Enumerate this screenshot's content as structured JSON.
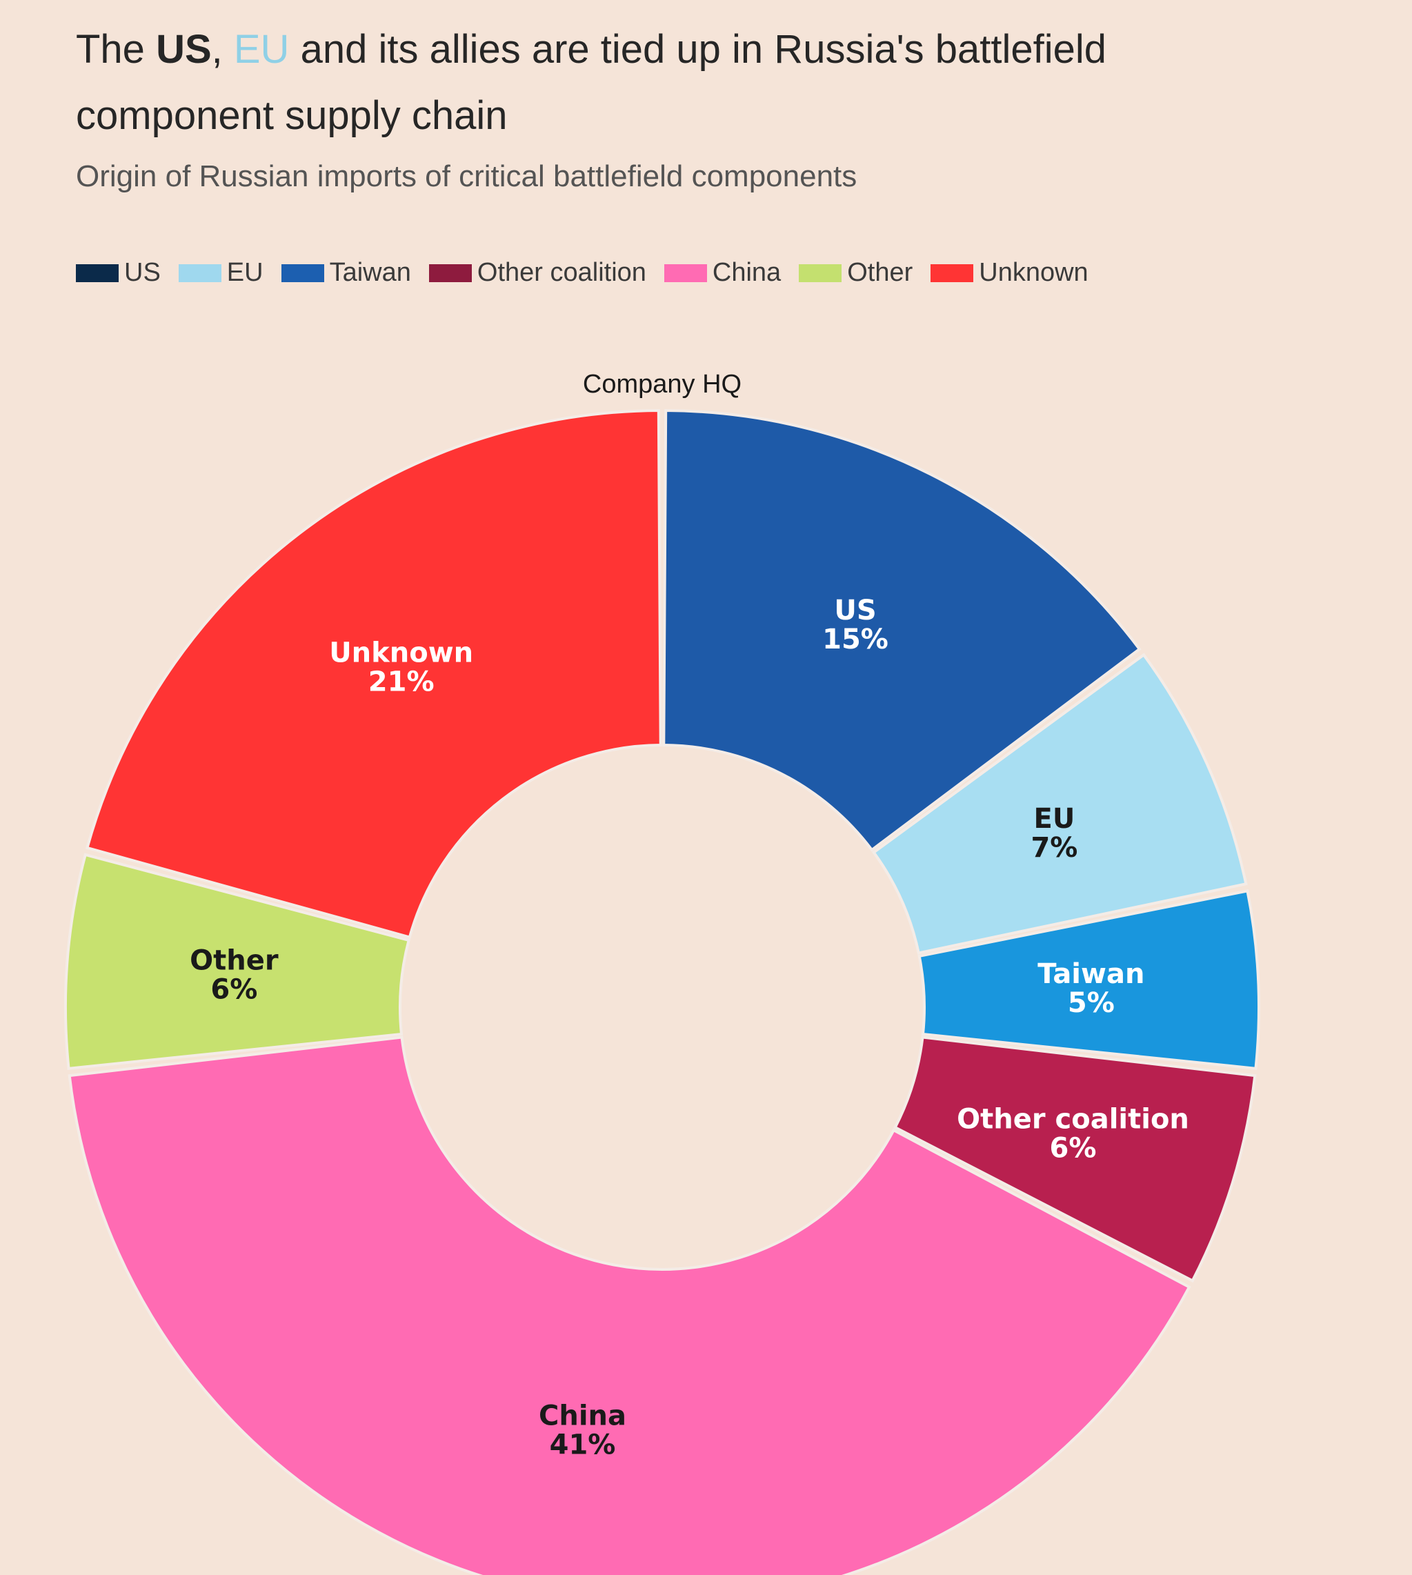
{
  "header": {
    "title_parts": {
      "prefix": "The ",
      "us": "US",
      "comma": ", ",
      "eu": "EU",
      "rest": " and its allies are tied up in Russia's battlefield component supply chain"
    },
    "subtitle": "Origin of Russian imports of critical battlefield components"
  },
  "legend": [
    {
      "label": "US",
      "color": "#0b2a4a"
    },
    {
      "label": "EU",
      "color": "#9fd8ee"
    },
    {
      "label": "Taiwan",
      "color": "#1c5fb0"
    },
    {
      "label": "Other coalition",
      "color": "#8e1b3e"
    },
    {
      "label": "China",
      "color": "#ff6bb3"
    },
    {
      "label": "Other",
      "color": "#c4e06f"
    },
    {
      "label": "Unknown",
      "color": "#ff3434"
    }
  ],
  "chart_data": {
    "type": "pie",
    "title": "The US, EU and its allies are tied up in Russia's battlefield component supply chain",
    "subtitle": "Origin of Russian imports of critical battlefield components",
    "top_label": "Company HQ",
    "donut": true,
    "legend_position": "top",
    "categories": [
      "US",
      "EU",
      "Taiwan",
      "Other coalition",
      "China",
      "Other",
      "Unknown"
    ],
    "values": [
      15,
      7,
      5,
      6,
      41,
      6,
      21
    ],
    "labels": [
      "15%",
      "7%",
      "5%",
      "6%",
      "41%",
      "6%",
      "21%"
    ],
    "colors": [
      "#1e5aa8",
      "#a8def2",
      "#1996dd",
      "#b8204f",
      "#ff6bb3",
      "#c7e16f",
      "#ff3434"
    ],
    "label_colors": [
      "#ffffff",
      "#1a1a1a",
      "#ffffff",
      "#ffffff",
      "#1a1a1a",
      "#1a1a1a",
      "#ffffff"
    ]
  }
}
